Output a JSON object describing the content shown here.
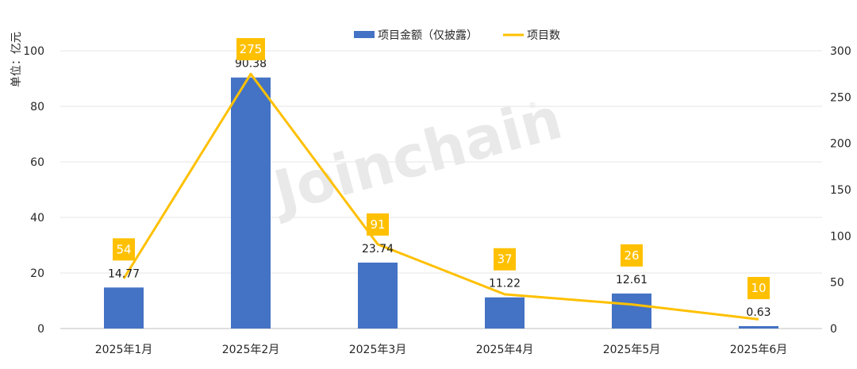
{
  "chart_data": {
    "type": "bar",
    "categories": [
      "2025年1月",
      "2025年2月",
      "2025年3月",
      "2025年4月",
      "2025年5月",
      "2025年6月"
    ],
    "series": [
      {
        "name": "项目金额（仅披露）",
        "type": "bar",
        "axis": "left",
        "color": "#4472C4",
        "values": [
          14.77,
          90.38,
          23.74,
          11.22,
          12.61,
          0.63
        ],
        "labels": [
          "14.77",
          "90.38",
          "23.74",
          "11.22",
          "12.61",
          "0.63"
        ]
      },
      {
        "name": "项目数",
        "type": "line",
        "axis": "right",
        "color": "#FFC000",
        "values": [
          54,
          275,
          91,
          37,
          26,
          10
        ],
        "labels": [
          "54",
          "275",
          "91",
          "37",
          "26",
          "10"
        ]
      }
    ],
    "ylabel": "单位：亿元",
    "ylim": [
      0,
      100
    ],
    "yticks": [
      "0",
      "20",
      "40",
      "60",
      "80",
      "100"
    ],
    "y2lim": [
      0,
      300
    ],
    "y2ticks": [
      "0",
      "50",
      "100",
      "150",
      "200",
      "250",
      "300"
    ],
    "legend_position": "top-center",
    "grid": true
  },
  "watermark": "Joinchain",
  "watermark_mark": "®"
}
